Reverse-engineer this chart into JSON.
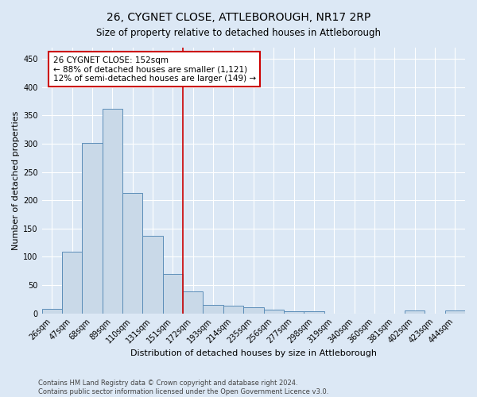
{
  "title": "26, CYGNET CLOSE, ATTLEBOROUGH, NR17 2RP",
  "subtitle": "Size of property relative to detached houses in Attleborough",
  "xlabel": "Distribution of detached houses by size in Attleborough",
  "ylabel": "Number of detached properties",
  "footnote1": "Contains HM Land Registry data © Crown copyright and database right 2024.",
  "footnote2": "Contains public sector information licensed under the Open Government Licence v3.0.",
  "bin_labels": [
    "26sqm",
    "47sqm",
    "68sqm",
    "89sqm",
    "110sqm",
    "131sqm",
    "151sqm",
    "172sqm",
    "193sqm",
    "214sqm",
    "235sqm",
    "256sqm",
    "277sqm",
    "298sqm",
    "319sqm",
    "340sqm",
    "360sqm",
    "381sqm",
    "402sqm",
    "423sqm",
    "444sqm"
  ],
  "bar_values": [
    8,
    109,
    301,
    362,
    213,
    137,
    70,
    39,
    15,
    13,
    10,
    7,
    4,
    3,
    0,
    0,
    0,
    0,
    5,
    0,
    5
  ],
  "bar_color": "#c9d9e8",
  "bar_edge_color": "#5b8db8",
  "vline_x": 6.5,
  "vline_color": "#cc0000",
  "annotation_line1": "26 CYGNET CLOSE: 152sqm",
  "annotation_line2": "← 88% of detached houses are smaller (1,121)",
  "annotation_line3": "12% of semi-detached houses are larger (149) →",
  "annotation_box_color": "white",
  "annotation_box_edge": "#cc0000",
  "annotation_fontsize": 7.5,
  "ylim": [
    0,
    470
  ],
  "yticks": [
    0,
    50,
    100,
    150,
    200,
    250,
    300,
    350,
    400,
    450
  ],
  "background_color": "#dce8f5",
  "title_fontsize": 10,
  "subtitle_fontsize": 8.5,
  "xlabel_fontsize": 8,
  "ylabel_fontsize": 8,
  "tick_fontsize": 7
}
